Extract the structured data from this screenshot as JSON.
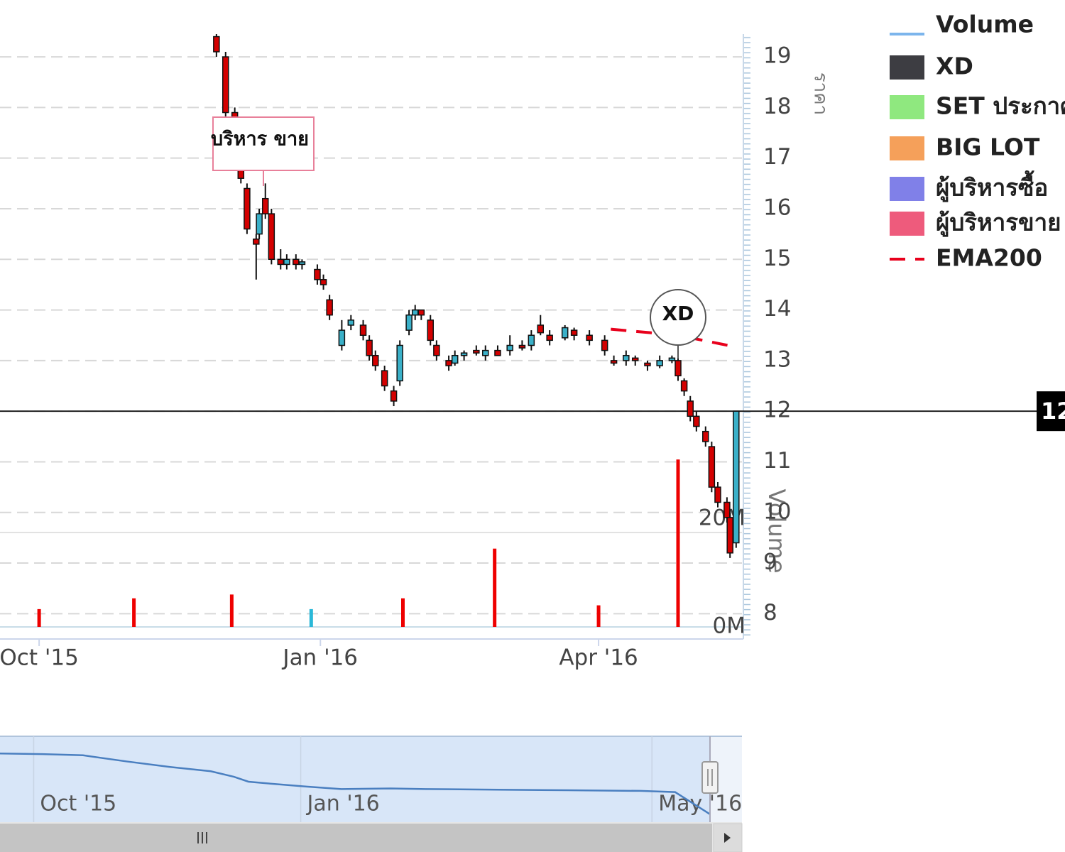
{
  "chart_data": {
    "type": "candlestick",
    "xlim": [
      -12.8,
      229.9
    ],
    "xticks": [
      {
        "value": 0,
        "label": "Oct '15"
      },
      {
        "value": 92,
        "label": "Jan '16"
      },
      {
        "value": 183,
        "label": "Apr '16"
      }
    ],
    "ylim": [
      7.5,
      19.45
    ],
    "yticks": [
      8,
      9,
      10,
      11,
      12,
      13,
      14,
      15,
      16,
      17,
      18,
      19
    ],
    "ylabel": "ราคา",
    "grid": true,
    "up_color": "#3ab0c8",
    "down_color": "#d40000",
    "candles": {
      "x": [
        58,
        61,
        64,
        66,
        68,
        71,
        72,
        74,
        76,
        79,
        81,
        84,
        86,
        91,
        93,
        95,
        99,
        102,
        106,
        108,
        110,
        113,
        116,
        118,
        121,
        123,
        125,
        128,
        130,
        134,
        136,
        139,
        143,
        146,
        150,
        154,
        158,
        161,
        164,
        167,
        172,
        175,
        180,
        185,
        188,
        192,
        195,
        199,
        203,
        207,
        209,
        211,
        213,
        215,
        218,
        220,
        222,
        225,
        226,
        228
      ],
      "open": [
        19.4,
        19.0,
        17.9,
        17.3,
        16.4,
        15.4,
        15.5,
        16.2,
        15.9,
        15.0,
        14.9,
        15.0,
        14.9,
        14.8,
        14.6,
        14.2,
        13.3,
        13.7,
        13.7,
        13.4,
        13.1,
        12.8,
        12.4,
        12.6,
        13.6,
        13.9,
        14.0,
        13.8,
        13.3,
        13.0,
        12.95,
        13.1,
        13.2,
        13.1,
        13.2,
        13.2,
        13.3,
        13.3,
        13.7,
        13.5,
        13.45,
        13.6,
        13.5,
        13.4,
        13.0,
        13.0,
        13.05,
        12.95,
        12.9,
        13.0,
        13.0,
        12.6,
        12.2,
        11.9,
        11.6,
        11.3,
        10.5,
        10.2,
        9.9,
        9.4
      ],
      "high": [
        19.45,
        19.1,
        18.0,
        17.4,
        16.5,
        15.5,
        16.0,
        16.5,
        16.0,
        15.2,
        15.1,
        15.1,
        15.0,
        14.9,
        14.7,
        14.3,
        13.8,
        13.9,
        13.8,
        13.5,
        13.2,
        12.9,
        12.5,
        13.4,
        14.0,
        14.1,
        14.0,
        13.9,
        13.4,
        13.1,
        13.2,
        13.2,
        13.3,
        13.3,
        13.3,
        13.5,
        13.4,
        13.6,
        13.9,
        13.6,
        13.7,
        13.65,
        13.6,
        13.5,
        13.1,
        13.2,
        13.1,
        13.0,
        13.1,
        13.1,
        13.05,
        12.65,
        12.3,
        12.0,
        11.7,
        11.4,
        10.6,
        10.3,
        10.0,
        12.0
      ],
      "low": [
        19.0,
        17.8,
        17.5,
        16.5,
        15.5,
        14.6,
        15.4,
        15.8,
        14.9,
        14.8,
        14.8,
        14.8,
        14.8,
        14.5,
        14.4,
        13.8,
        13.2,
        13.6,
        13.4,
        13.0,
        12.8,
        12.4,
        12.1,
        12.5,
        13.5,
        13.8,
        13.8,
        13.3,
        13.0,
        12.8,
        12.9,
        13.0,
        13.1,
        13.0,
        13.1,
        13.1,
        13.2,
        13.2,
        13.5,
        13.3,
        13.4,
        13.4,
        13.3,
        13.1,
        12.9,
        12.9,
        12.9,
        12.8,
        12.85,
        12.95,
        12.6,
        12.3,
        11.8,
        11.6,
        11.3,
        10.4,
        10.1,
        9.8,
        9.1,
        9.3
      ],
      "close": [
        19.1,
        17.9,
        17.6,
        16.6,
        15.6,
        15.3,
        15.9,
        15.9,
        15.0,
        14.9,
        15.0,
        14.9,
        14.95,
        14.6,
        14.5,
        13.9,
        13.6,
        13.8,
        13.5,
        13.1,
        12.9,
        12.5,
        12.2,
        13.3,
        13.9,
        14.0,
        13.9,
        13.4,
        13.1,
        12.9,
        13.1,
        13.15,
        13.15,
        13.2,
        13.1,
        13.3,
        13.25,
        13.5,
        13.55,
        13.4,
        13.65,
        13.5,
        13.4,
        13.2,
        12.95,
        13.1,
        13.0,
        12.9,
        13.0,
        13.05,
        12.7,
        12.4,
        11.9,
        11.7,
        11.4,
        10.5,
        10.2,
        9.9,
        9.2,
        12.0
      ]
    },
    "ema": {
      "name": "EMA200",
      "color": "#e8001c",
      "x": [
        187,
        200,
        213,
        227
      ],
      "values": [
        13.62,
        13.55,
        13.45,
        13.28
      ]
    },
    "volume": {
      "ylabel": "Volume",
      "ylim": [
        0,
        37.2
      ],
      "yticks": [
        {
          "value": 0,
          "label": "0M"
        },
        {
          "value": 20,
          "label": "20M"
        }
      ],
      "x": [
        0,
        31,
        63,
        89,
        119,
        149,
        183,
        209
      ],
      "values": [
        3.3,
        5.3,
        6,
        3.3,
        5.3,
        14.5,
        4,
        31
      ],
      "colors": [
        "#ee0000",
        "#ee0000",
        "#ee0000",
        "#2ab8d8",
        "#ee0000",
        "#ee0000",
        "#ee0000",
        "#ee0000"
      ]
    },
    "last_price": 12,
    "annotations": [
      {
        "text": "บริหาร ขาย"
      },
      {
        "text": "XD"
      }
    ],
    "legend": [
      {
        "name": "Volume",
        "color": "#7cb5ec",
        "symbol": "line"
      },
      {
        "name": "XD",
        "color": "#3d3d42",
        "symbol": "box"
      },
      {
        "name": "SET ประกาศ",
        "color": "#8fe87f",
        "symbol": "box"
      },
      {
        "name": "BIG LOT",
        "color": "#f5a05a",
        "symbol": "box"
      },
      {
        "name": "ผู้บริหารซื้อ",
        "color": "#8080e8",
        "symbol": "box"
      },
      {
        "name": "ผู้บริหารขาย",
        "color": "#ee5b7c",
        "symbol": "box"
      },
      {
        "name": "EMA200",
        "color": "#e8001c",
        "symbol": "dash"
      }
    ],
    "navigator": {
      "xlim": [
        -11.6,
        233
      ],
      "ylim": [
        8,
        22
      ],
      "xticks": [
        {
          "value": 0,
          "label": "Oct '15"
        },
        {
          "value": 92,
          "label": "Jan '16"
        },
        {
          "value": 213,
          "label": "May '16"
        }
      ],
      "x": [
        -12,
        3,
        17,
        32,
        47,
        61,
        69,
        74,
        81,
        94,
        106,
        123,
        135,
        160,
        184,
        209,
        221,
        233
      ],
      "values": [
        19.2,
        19.1,
        18.9,
        17.9,
        17.0,
        16.3,
        15.4,
        14.6,
        14.3,
        13.8,
        13.4,
        13.5,
        13.4,
        13.3,
        13.2,
        13.1,
        12.9,
        9.3
      ]
    }
  }
}
